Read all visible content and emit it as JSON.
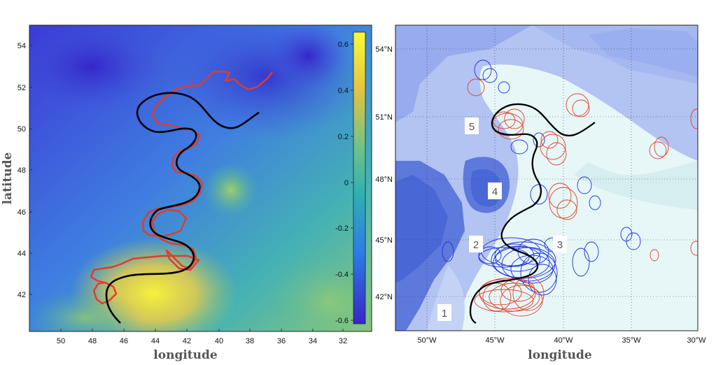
{
  "left_panel": {
    "xlabel": "longitude",
    "ylabel": "latitude",
    "x_ticks": [
      "50",
      "48",
      "46",
      "44",
      "42",
      "40",
      "38",
      "36",
      "34",
      "32"
    ],
    "y_ticks": [
      "54",
      "52",
      "50",
      "48",
      "46",
      "44",
      "42"
    ],
    "colorbar_ticks": [
      "0.6",
      "0.4",
      "0.2",
      "0",
      "-0.2",
      "-0.4",
      "-0.6"
    ],
    "colors": {
      "low": "#3b2fd6",
      "mid": "#35b3b0",
      "high": "#f4ee3a",
      "track_red": "#e23b2a",
      "track_black": "#000000"
    }
  },
  "right_panel": {
    "xlabel": "longitude",
    "x_ticks": [
      "50°W",
      "45°W",
      "40°W",
      "35°W",
      "30°W"
    ],
    "y_ticks": [
      "54°N",
      "51°N",
      "48°N",
      "45°N",
      "42°N"
    ],
    "region_labels": [
      "1",
      "2",
      "3",
      "4",
      "5"
    ],
    "colors": {
      "eddy_blue": "#1d2fe0",
      "eddy_red": "#e2402a",
      "deep": "#4a67d6",
      "shelf": "#e7f7f7"
    }
  }
}
